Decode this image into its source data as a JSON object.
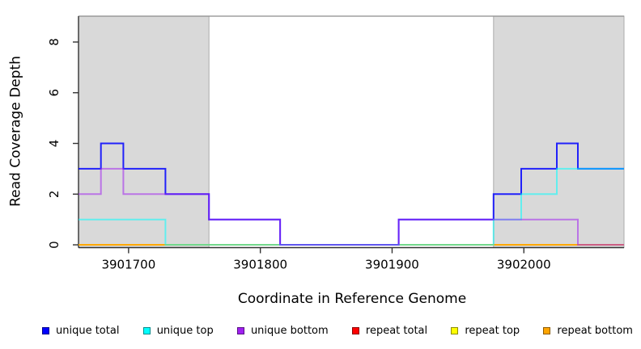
{
  "chart_data": {
    "type": "line",
    "subtype": "step-coverage",
    "title": "",
    "xlabel": "Coordinate in Reference Genome",
    "ylabel": "Read Coverage Depth",
    "xlim": [
      3901662,
      3902076
    ],
    "ylim": [
      -0.11,
      9.02
    ],
    "x_ticks": [
      3901700,
      3901800,
      3901900,
      3902000
    ],
    "y_ticks": [
      0,
      2,
      4,
      6,
      8
    ],
    "grid": false,
    "background_color": "#ffffff",
    "shaded_region_color": "#D9D9D9",
    "shaded_regions": [
      {
        "name": "left-gray-region",
        "x0": 3901662,
        "x1": 3901761
      },
      {
        "name": "right-gray-region",
        "x0": 3901977,
        "x1": 3902076
      }
    ],
    "series": [
      {
        "name": "repeat total",
        "color": "#FF0000",
        "steps": [
          [
            3901662,
            0
          ],
          [
            3902076,
            0
          ]
        ]
      },
      {
        "name": "repeat top",
        "color": "#FFFF00",
        "steps": [
          [
            3901662,
            0
          ],
          [
            3902076,
            0
          ]
        ]
      },
      {
        "name": "repeat bottom",
        "color": "#FFA500",
        "steps": [
          [
            3901662,
            0
          ],
          [
            3902076,
            0
          ]
        ]
      },
      {
        "name": "unique total",
        "color": "#0000FF",
        "steps": [
          [
            3901662,
            3
          ],
          [
            3901679,
            3
          ],
          [
            3901679,
            4
          ],
          [
            3901696,
            4
          ],
          [
            3901696,
            3
          ],
          [
            3901728,
            3
          ],
          [
            3901728,
            2
          ],
          [
            3901761,
            2
          ],
          [
            3901761,
            1
          ],
          [
            3901815,
            1
          ],
          [
            3901815,
            0
          ],
          [
            3901905,
            0
          ],
          [
            3901905,
            1
          ],
          [
            3901977,
            1
          ],
          [
            3901977,
            2
          ],
          [
            3901998,
            2
          ],
          [
            3901998,
            3
          ],
          [
            3902025,
            3
          ],
          [
            3902025,
            4
          ],
          [
            3902041,
            4
          ],
          [
            3902041,
            3
          ],
          [
            3902076,
            3
          ]
        ]
      },
      {
        "name": "unique top",
        "color": "#00FFFF",
        "steps": [
          [
            3901662,
            1
          ],
          [
            3901728,
            1
          ],
          [
            3901728,
            0
          ],
          [
            3901977,
            0
          ],
          [
            3901977,
            1
          ],
          [
            3901998,
            1
          ],
          [
            3901998,
            2
          ],
          [
            3902025,
            2
          ],
          [
            3902025,
            3
          ],
          [
            3902076,
            3
          ]
        ]
      },
      {
        "name": "unique bottom",
        "color": "#A020F0",
        "steps": [
          [
            3901662,
            2
          ],
          [
            3901679,
            2
          ],
          [
            3901679,
            3
          ],
          [
            3901696,
            3
          ],
          [
            3901696,
            2
          ],
          [
            3901761,
            2
          ],
          [
            3901761,
            1
          ],
          [
            3901815,
            1
          ],
          [
            3901815,
            0
          ],
          [
            3901905,
            0
          ],
          [
            3901905,
            1
          ],
          [
            3902041,
            1
          ],
          [
            3902041,
            0
          ],
          [
            3902076,
            0
          ]
        ]
      }
    ],
    "legend": {
      "position": "bottom",
      "items": [
        {
          "label": "unique total",
          "color": "#0000FF"
        },
        {
          "label": "unique top",
          "color": "#00FFFF"
        },
        {
          "label": "unique bottom",
          "color": "#A020F0"
        },
        {
          "label": "repeat total",
          "color": "#FF0000"
        },
        {
          "label": "repeat top",
          "color": "#FFFF00"
        },
        {
          "label": "repeat bottom",
          "color": "#FFA500"
        }
      ]
    }
  }
}
